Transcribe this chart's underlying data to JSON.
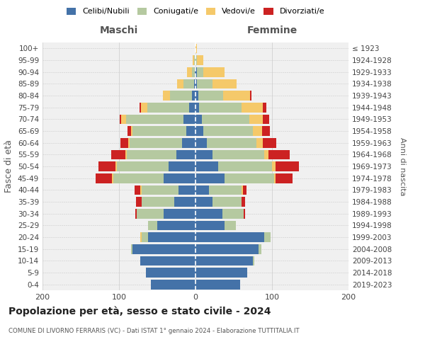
{
  "age_groups": [
    "0-4",
    "5-9",
    "10-14",
    "15-19",
    "20-24",
    "25-29",
    "30-34",
    "35-39",
    "40-44",
    "45-49",
    "50-54",
    "55-59",
    "60-64",
    "65-69",
    "70-74",
    "75-79",
    "80-84",
    "85-89",
    "90-94",
    "95-99",
    "100+"
  ],
  "birth_years": [
    "2019-2023",
    "2014-2018",
    "2009-2013",
    "2004-2008",
    "1999-2003",
    "1994-1998",
    "1989-1993",
    "1984-1988",
    "1979-1983",
    "1974-1978",
    "1969-1973",
    "1964-1968",
    "1959-1963",
    "1954-1958",
    "1949-1953",
    "1944-1948",
    "1939-1943",
    "1934-1938",
    "1929-1933",
    "1924-1928",
    "≤ 1923"
  ],
  "maschi": {
    "celibi": [
      58,
      65,
      72,
      82,
      62,
      50,
      42,
      28,
      22,
      42,
      35,
      25,
      18,
      12,
      16,
      8,
      5,
      2,
      1,
      0,
      0
    ],
    "coniugati": [
      0,
      0,
      0,
      2,
      8,
      12,
      35,
      42,
      48,
      65,
      68,
      65,
      68,
      70,
      75,
      55,
      28,
      14,
      4,
      2,
      0
    ],
    "vedovi": [
      0,
      0,
      0,
      0,
      2,
      0,
      0,
      0,
      2,
      2,
      2,
      2,
      2,
      2,
      6,
      8,
      10,
      8,
      6,
      2,
      0
    ],
    "divorziati": [
      0,
      0,
      0,
      0,
      0,
      0,
      2,
      8,
      8,
      22,
      22,
      18,
      10,
      5,
      2,
      2,
      0,
      0,
      0,
      0,
      0
    ]
  },
  "femmine": {
    "nubili": [
      58,
      68,
      75,
      82,
      90,
      38,
      35,
      22,
      18,
      38,
      30,
      22,
      15,
      10,
      8,
      5,
      4,
      2,
      2,
      0,
      0
    ],
    "coniugate": [
      0,
      0,
      2,
      4,
      8,
      15,
      28,
      38,
      42,
      65,
      70,
      68,
      65,
      65,
      62,
      55,
      32,
      20,
      8,
      2,
      0
    ],
    "vedove": [
      0,
      0,
      0,
      0,
      0,
      0,
      0,
      0,
      2,
      2,
      5,
      5,
      8,
      12,
      18,
      28,
      35,
      32,
      28,
      8,
      2
    ],
    "divorziate": [
      0,
      0,
      0,
      0,
      0,
      0,
      2,
      5,
      5,
      22,
      30,
      28,
      18,
      10,
      8,
      5,
      2,
      0,
      0,
      0,
      0
    ]
  },
  "colors": {
    "celibi": "#4472a8",
    "coniugati": "#b5c9a0",
    "vedovi": "#f5c96a",
    "divorziati": "#cc2222"
  },
  "xlim": 200,
  "title": "Popolazione per età, sesso e stato civile - 2024",
  "subtitle": "COMUNE DI LIVORNO FERRARIS (VC) - Dati ISTAT 1° gennaio 2024 - Elaborazione TUTTITALIA.IT",
  "ylabel_left": "Fasce di età",
  "ylabel_right": "Anni di nascita",
  "xlabel_left": "Maschi",
  "xlabel_right": "Femmine"
}
